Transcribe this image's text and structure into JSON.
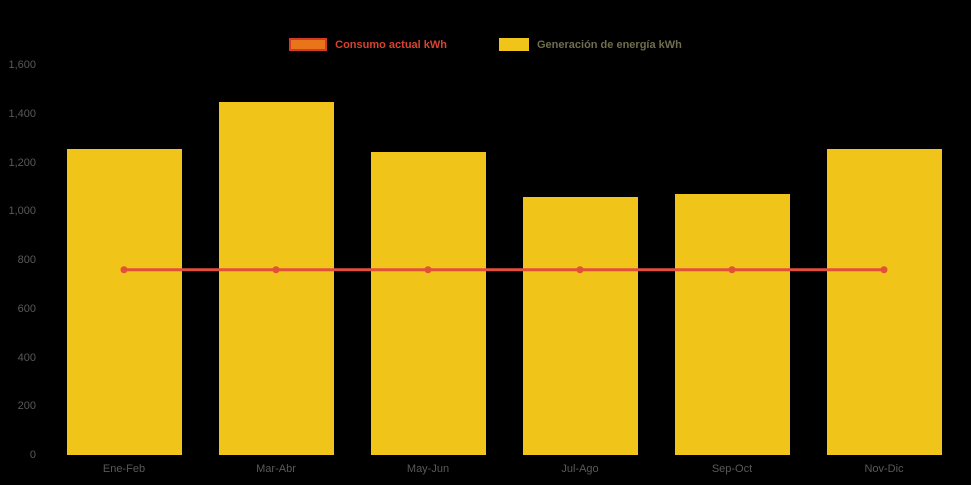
{
  "chart": {
    "background": "#000000",
    "axis_label_color": "#595959",
    "legend": [
      {
        "label": "Consumo actual kWh",
        "series_type": "line",
        "swatch_fill": "#E8751A",
        "swatch_border": "#D43A26",
        "text_color": "#D8432F"
      },
      {
        "label": "Generación de energía kWh",
        "series_type": "bar",
        "swatch_fill": "#F0C419",
        "swatch_border": "#F0C419",
        "text_color": "#6E6E4E"
      }
    ]
  },
  "chart_data": {
    "type": "bar",
    "categories": [
      "Ene-Feb",
      "Mar-Abr",
      "May-Jun",
      "Jul-Ago",
      "Sep-Oct",
      "Nov-Dic"
    ],
    "series": [
      {
        "name": "Generación de energía kWh",
        "type": "bar",
        "color": "#F0C419",
        "values": [
          1255,
          1450,
          1245,
          1060,
          1070,
          1255
        ]
      },
      {
        "name": "Consumo actual kWh",
        "type": "line",
        "color": "#E2503C",
        "values": [
          760,
          760,
          760,
          760,
          760,
          760
        ]
      }
    ],
    "title": "",
    "xlabel": "",
    "ylabel": "",
    "ylim": [
      0,
      1600
    ],
    "ytick_labels": [
      "0",
      "200",
      "400",
      "600",
      "800",
      "1,000",
      "1,200",
      "1,400",
      "1,600"
    ],
    "ytick_values": [
      0,
      200,
      400,
      600,
      800,
      1000,
      1200,
      1400,
      1600
    ],
    "grid": false,
    "legend_position": "top-center"
  }
}
